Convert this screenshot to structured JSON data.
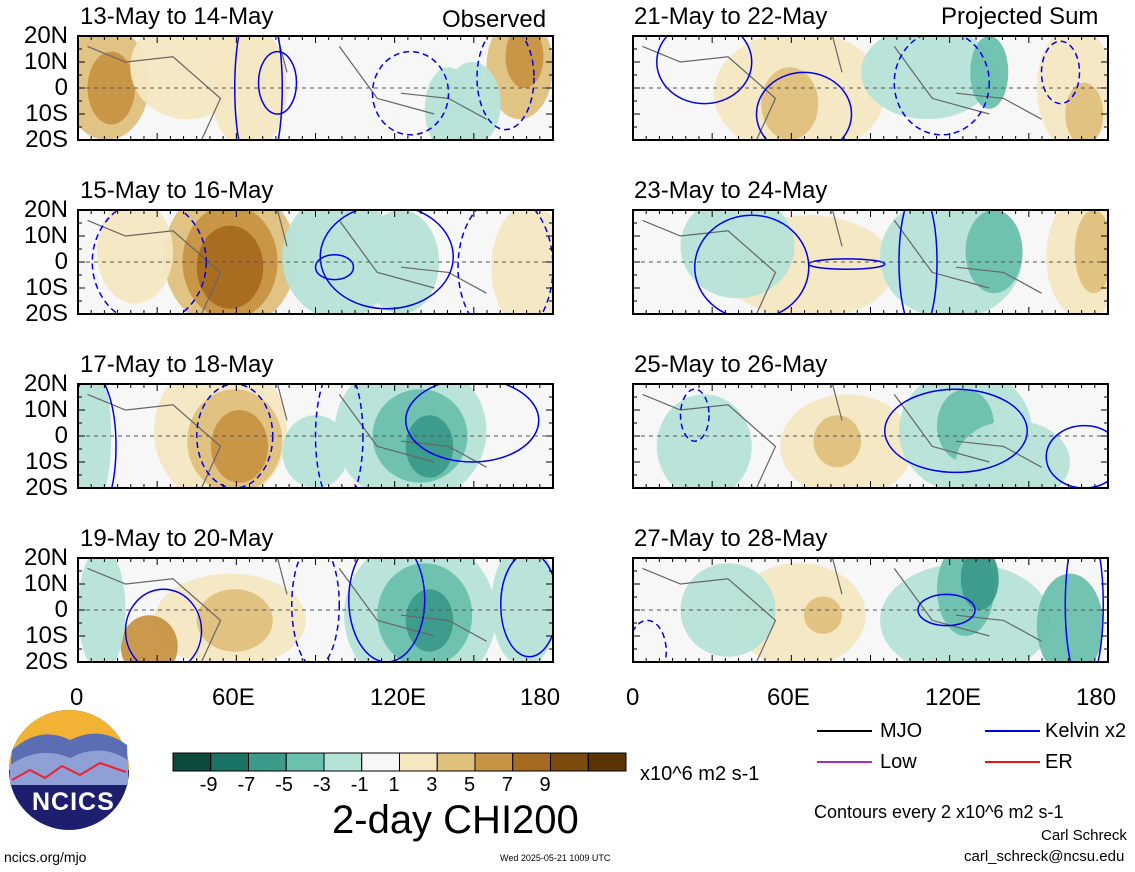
{
  "panels": [
    {
      "col": 0,
      "row": 0,
      "title": "13-May to 14-May"
    },
    {
      "col": 0,
      "row": 1,
      "title": "15-May to 16-May"
    },
    {
      "col": 0,
      "row": 2,
      "title": "17-May to 18-May"
    },
    {
      "col": 0,
      "row": 3,
      "title": "19-May to 20-May"
    },
    {
      "col": 1,
      "row": 0,
      "title": "21-May to 22-May"
    },
    {
      "col": 1,
      "row": 1,
      "title": "23-May to 24-May"
    },
    {
      "col": 1,
      "row": 2,
      "title": "25-May to 26-May"
    },
    {
      "col": 1,
      "row": 3,
      "title": "27-May to 28-May"
    }
  ],
  "tags": {
    "observed": "Observed",
    "projected": "Projected Sum"
  },
  "lat_labels": [
    "20N",
    "10N",
    "0",
    "10S",
    "20S"
  ],
  "lon_labels": [
    "0",
    "60E",
    "120E",
    "180"
  ],
  "colorbar": {
    "colors": [
      "#0d4a3c",
      "#1b7365",
      "#3b9a8a",
      "#6cc0ae",
      "#b6e3d8",
      "#f7f7f7",
      "#f4e7c2",
      "#dfc07d",
      "#c79344",
      "#a66a20",
      "#7a4a0e",
      "#5a3406"
    ],
    "labels": [
      "-9",
      "-7",
      "-5",
      "-3",
      "-1",
      "1",
      "3",
      "5",
      "7",
      "9"
    ],
    "units": "x10^6 m2 s-1",
    "title": "2-day CHI200"
  },
  "legend": [
    {
      "label": "MJO",
      "color": "#000000"
    },
    {
      "label": "Kelvin x2",
      "color": "#0000ee"
    },
    {
      "label": "Low",
      "color": "#9932cc"
    },
    {
      "label": "ER",
      "color": "#ee1111"
    }
  ],
  "contour_note": "Contours every 2 x10^6 m2 s-1",
  "logo_text": "NCICS",
  "footer": {
    "url": "ncics.org/mjo",
    "timestamp": "Wed 2025-05-21 1009 UTC",
    "author": "Carl Schreck",
    "email": "carl_schreck@ncsu.edu"
  }
}
